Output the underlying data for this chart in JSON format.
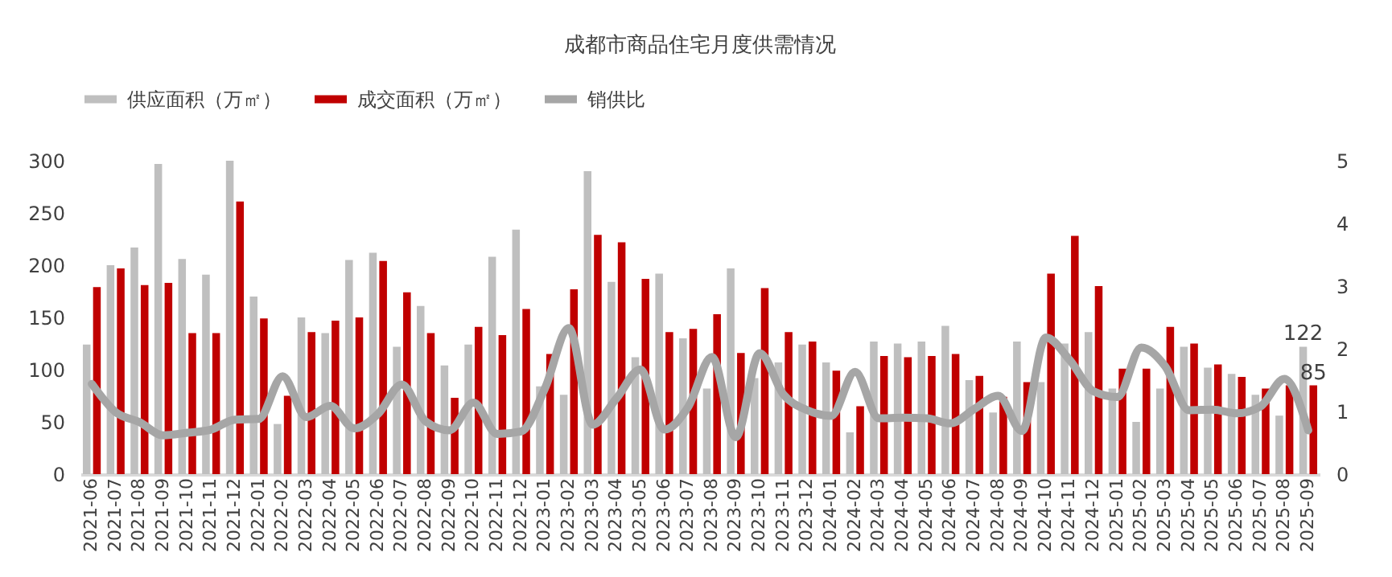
{
  "chart_data": {
    "type": "bar",
    "title": "成都市商品住宅月度供需情况",
    "categories": [
      "2021-06",
      "2021-07",
      "2021-08",
      "2021-09",
      "2021-10",
      "2021-11",
      "2021-12",
      "2022-01",
      "2022-02",
      "2022-03",
      "2022-04",
      "2022-05",
      "2022-06",
      "2022-07",
      "2022-08",
      "2022-09",
      "2022-10",
      "2022-11",
      "2022-12",
      "2023-01",
      "2023-02",
      "2023-03",
      "2023-04",
      "2023-05",
      "2023-06",
      "2023-07",
      "2023-08",
      "2023-09",
      "2023-10",
      "2023-11",
      "2023-12",
      "2024-01",
      "2024-02",
      "2024-03",
      "2024-04",
      "2024-05",
      "2024-06",
      "2024-07",
      "2024-08",
      "2024-09",
      "2024-10",
      "2024-11",
      "2024-12",
      "2025-01",
      "2025-02",
      "2025-03",
      "2025-04",
      "2025-05",
      "2025-06",
      "2025-07",
      "2025-08",
      "2025-09"
    ],
    "series": [
      {
        "name": "供应面积（万㎡）",
        "color": "#bfbfbf",
        "values": [
          124,
          200,
          217,
          297,
          206,
          191,
          300,
          170,
          48,
          150,
          135,
          205,
          212,
          122,
          161,
          104,
          124,
          208,
          234,
          84,
          76,
          290,
          184,
          112,
          192,
          130,
          82,
          197,
          92,
          107,
          124,
          107,
          40,
          127,
          125,
          127,
          142,
          90,
          59,
          127,
          88,
          125,
          136,
          82,
          50,
          82,
          122,
          102,
          96,
          76,
          56,
          122
        ],
        "value_labels": [
          null,
          null,
          null,
          null,
          null,
          null,
          null,
          null,
          null,
          null,
          null,
          null,
          null,
          null,
          null,
          null,
          null,
          null,
          null,
          null,
          null,
          null,
          null,
          null,
          null,
          null,
          null,
          null,
          null,
          null,
          null,
          null,
          null,
          null,
          null,
          null,
          null,
          null,
          null,
          null,
          null,
          null,
          null,
          null,
          null,
          null,
          null,
          null,
          null,
          null,
          null,
          "122"
        ]
      },
      {
        "name": "成交面积（万㎡）",
        "color": "#c00000",
        "values": [
          179,
          197,
          181,
          183,
          135,
          135,
          261,
          149,
          75,
          136,
          147,
          150,
          204,
          174,
          135,
          73,
          141,
          133,
          158,
          115,
          177,
          229,
          222,
          187,
          136,
          139,
          153,
          116,
          178,
          136,
          127,
          99,
          65,
          113,
          112,
          113,
          115,
          94,
          74,
          88,
          192,
          228,
          180,
          101,
          101,
          141,
          125,
          105,
          93,
          82,
          85,
          85
        ],
        "value_labels": [
          null,
          null,
          null,
          null,
          null,
          null,
          null,
          null,
          null,
          null,
          null,
          null,
          null,
          null,
          null,
          null,
          null,
          null,
          null,
          null,
          null,
          null,
          null,
          null,
          null,
          null,
          null,
          null,
          null,
          null,
          null,
          null,
          null,
          null,
          null,
          null,
          null,
          null,
          null,
          null,
          null,
          null,
          null,
          null,
          null,
          null,
          null,
          null,
          null,
          null,
          null,
          "85"
        ]
      },
      {
        "name": "销供比",
        "type": "line",
        "axis": "y2",
        "color": "#a6a6a6",
        "values": [
          1.44,
          0.99,
          0.83,
          0.62,
          0.66,
          0.71,
          0.87,
          0.88,
          1.56,
          0.91,
          1.09,
          0.73,
          0.96,
          1.43,
          0.84,
          0.7,
          1.14,
          0.64,
          0.68,
          1.37,
          2.33,
          0.79,
          1.21,
          1.67,
          0.71,
          1.07,
          1.87,
          0.59,
          1.93,
          1.27,
          1.02,
          0.93,
          1.63,
          0.89,
          0.9,
          0.89,
          0.81,
          1.04,
          1.25,
          0.69,
          2.18,
          1.82,
          1.32,
          1.23,
          2.02,
          1.72,
          1.02,
          1.03,
          0.97,
          1.08,
          1.52,
          0.7
        ]
      }
    ],
    "ylim": [
      0,
      300
    ],
    "yticks": [
      0,
      50,
      100,
      150,
      200,
      250,
      300
    ],
    "y2lim": [
      0,
      5
    ],
    "y2ticks": [
      0,
      1,
      2,
      3,
      4,
      5
    ],
    "legend": "top",
    "grid": false,
    "line_style": "solid"
  }
}
